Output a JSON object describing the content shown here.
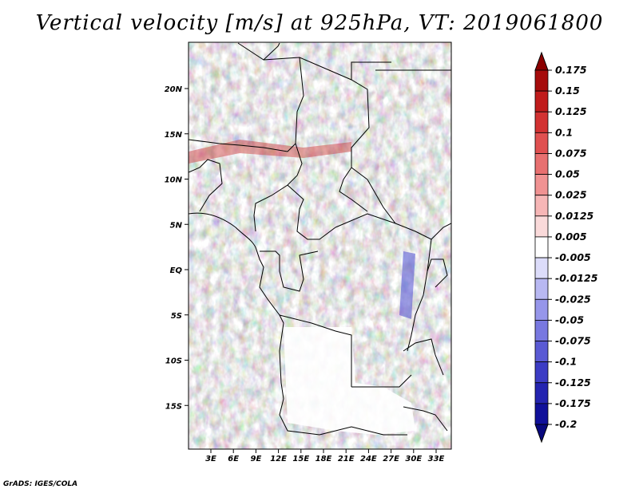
{
  "title": "Vertical velocity [m/s] at 925hPa, VT: 2019061800",
  "credit": "GrADS: IGES/COLA",
  "map": {
    "lon_labels": [
      "3E",
      "6E",
      "9E",
      "12E",
      "15E",
      "18E",
      "21E",
      "24E",
      "27E",
      "30E",
      "33E"
    ],
    "lon_values": [
      3,
      6,
      9,
      12,
      15,
      18,
      21,
      24,
      27,
      30,
      33
    ],
    "lat_labels": [
      "20N",
      "15N",
      "10N",
      "5N",
      "EQ",
      "5S",
      "10S",
      "15S"
    ],
    "lat_values": [
      20,
      15,
      10,
      5,
      0,
      -5,
      -10,
      -15
    ]
  },
  "colorbar": {
    "labels": [
      "0.175",
      "0.15",
      "0.125",
      "0.1",
      "0.075",
      "0.05",
      "0.025",
      "0.0125",
      "0.005",
      "-0.005",
      "-0.0125",
      "-0.025",
      "-0.05",
      "-0.075",
      "-0.1",
      "-0.125",
      "-0.175",
      "-0.2"
    ],
    "colors": [
      "#8b0000",
      "#a60c0c",
      "#c01c1c",
      "#d23232",
      "#e05050",
      "#e87070",
      "#f09292",
      "#f6b6b6",
      "#fadada",
      "#ffffff",
      "#dcdcfa",
      "#b8b8f2",
      "#9696ea",
      "#7878e0",
      "#5a5ad4",
      "#3c3cc4",
      "#2424b0",
      "#10109a",
      "#08087e"
    ]
  }
}
